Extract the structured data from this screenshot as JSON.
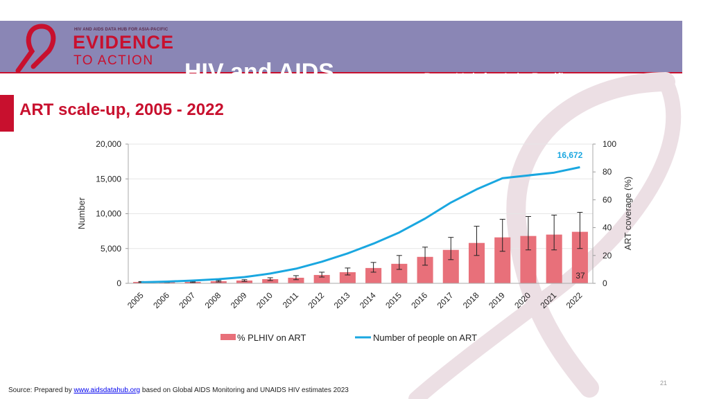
{
  "header": {
    "logo_top": "HIV AND AIDS DATA HUB FOR ASIA-PACIFIC",
    "logo_main": "EVIDENCE",
    "logo_sub": "TO ACTION",
    "title": "HIV and AIDS",
    "subtitle": "Data Hub for Asia-Pacific"
  },
  "section_title": "ART scale-up, 2005 - 2022",
  "colors": {
    "header_bg": "#8a86b5",
    "accent": "#c8102e",
    "bar": "#e8707a",
    "line": "#1aa7e0"
  },
  "chart_data": {
    "type": "bar+line",
    "categories": [
      "2005",
      "2006",
      "2007",
      "2008",
      "2009",
      "2010",
      "2011",
      "2012",
      "2013",
      "2014",
      "2015",
      "2016",
      "2017",
      "2018",
      "2019",
      "2020",
      "2021",
      "2022"
    ],
    "series": [
      {
        "name": "% PLHIV on ART",
        "axis": "right",
        "type": "bar",
        "values": [
          1,
          1,
          1,
          1.5,
          2,
          3,
          4,
          6,
          8,
          11,
          14,
          19,
          24,
          29,
          33,
          34,
          35,
          37
        ],
        "error_low": [
          0.6,
          0.6,
          0.6,
          1,
          1.4,
          2,
          2.6,
          4.5,
          6,
          8,
          10,
          13,
          17,
          20,
          23,
          24,
          24,
          25
        ],
        "error_high": [
          1.3,
          1.3,
          1.3,
          2,
          2.6,
          4,
          5.5,
          8,
          11,
          15,
          20,
          26,
          33,
          41,
          46,
          48,
          49,
          51
        ]
      },
      {
        "name": "Number of people on ART",
        "axis": "left",
        "type": "line",
        "values": [
          150,
          250,
          400,
          600,
          900,
          1400,
          2100,
          3100,
          4300,
          5700,
          7300,
          9300,
          11600,
          13500,
          15100,
          15500,
          15900,
          16672
        ]
      }
    ],
    "left_axis": {
      "title": "Number",
      "min": 0,
      "max": 20000,
      "ticks": [
        "0",
        "5,000",
        "10,000",
        "15,000",
        "20,000"
      ]
    },
    "right_axis": {
      "title": "ART coverage (%)",
      "min": 0,
      "max": 100,
      "ticks": [
        "0",
        "20",
        "40",
        "60",
        "80",
        "100"
      ]
    },
    "annotations": {
      "line_last_label": "16,672",
      "bar_last_label": "37"
    },
    "legend_position": "bottom"
  },
  "footer": {
    "page_number": "21",
    "source_prefix": "Source: Prepared by ",
    "source_link": "www.aidsdatahub.org",
    "source_suffix": "  based on Global AIDS Monitoring and UNAIDS HIV estimates 2023"
  }
}
